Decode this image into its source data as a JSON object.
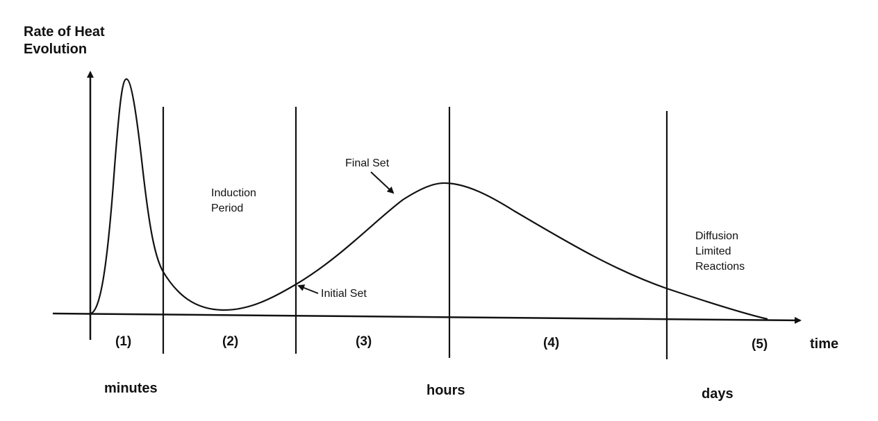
{
  "y_axis": {
    "title_line1": "Rate of Heat",
    "title_line2": "Evolution"
  },
  "x_axis": {
    "title": "time"
  },
  "phases": [
    {
      "id": "phase-1",
      "label": "(1)"
    },
    {
      "id": "phase-2",
      "label": "(2)"
    },
    {
      "id": "phase-3",
      "label": "(3)"
    },
    {
      "id": "phase-4",
      "label": "(4)"
    },
    {
      "id": "phase-5",
      "label": "(5)"
    }
  ],
  "time_units": {
    "minutes": "minutes",
    "hours": "hours",
    "days": "days"
  },
  "annotations": {
    "induction_line1": "Induction",
    "induction_line2": "Period",
    "final_set": "Final Set",
    "initial_set": "Initial Set",
    "diffusion_line1": "Diffusion",
    "diffusion_line2": "Limited",
    "diffusion_line3": "Reactions"
  },
  "colors": {
    "ink": "#111111",
    "background": "#ffffff"
  }
}
